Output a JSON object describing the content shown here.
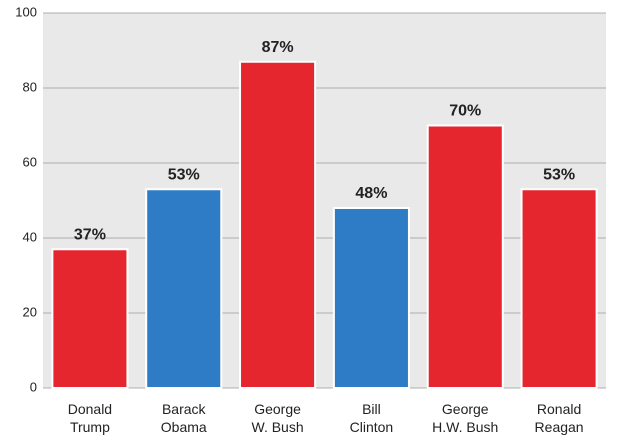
{
  "chart_data": {
    "type": "bar",
    "categories": [
      "Donald\nTrump",
      "Barack\nObama",
      "George\nW. Bush",
      "Bill\nClinton",
      "George\nH.W. Bush",
      "Ronald\nReagan"
    ],
    "values": [
      37,
      53,
      87,
      48,
      70,
      53
    ],
    "value_labels": [
      "37%",
      "53%",
      "87%",
      "48%",
      "70%",
      "53%"
    ],
    "colors": [
      "#e5262f",
      "#2d7cc5",
      "#e5262f",
      "#2d7cc5",
      "#e5262f",
      "#e5262f"
    ],
    "ylim": [
      0,
      100
    ],
    "yticks": [
      0,
      20,
      40,
      60,
      80,
      100
    ],
    "grid": true
  }
}
